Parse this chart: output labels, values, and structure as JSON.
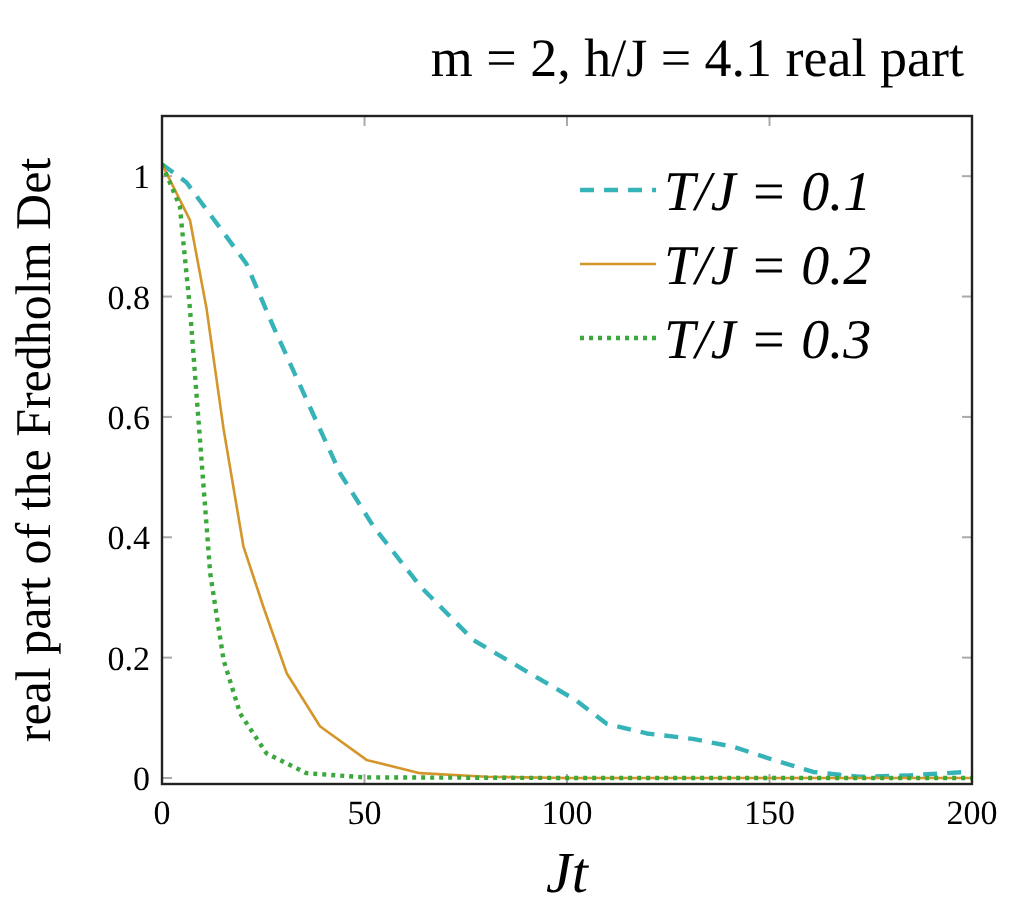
{
  "chart_data": {
    "type": "line",
    "title": "m = 2, h/J = 4.1 real part",
    "xlabel": "Jt",
    "ylabel": "real part of the Fredholm Det",
    "xlim": [
      0,
      200
    ],
    "ylim": [
      -0.01,
      1.1
    ],
    "xticks": [
      0,
      50,
      100,
      150,
      200
    ],
    "yticks": [
      0,
      0.2,
      0.4,
      0.6,
      0.8,
      1
    ],
    "grid": false,
    "legend": "top right",
    "marker": "none",
    "series": [
      {
        "name": "T/J = 0.1",
        "color": "#36b3b8",
        "line_style": "dashed",
        "x": [
          0,
          6,
          20.8,
          27.5,
          35.6,
          44,
          52.2,
          63.7,
          76.9,
          93.6,
          102,
          109.8,
          119.7,
          131,
          141,
          151,
          160.8,
          172,
          183.7,
          198.5,
          200
        ],
        "values": [
          1.02,
          0.99,
          0.855,
          0.75,
          0.63,
          0.506,
          0.418,
          0.319,
          0.229,
          0.163,
          0.13,
          0.09,
          0.074,
          0.065,
          0.052,
          0.03,
          0.01,
          0.002,
          0.004,
          0.01,
          0.01
        ]
      },
      {
        "name": "T/J = 0.2",
        "color": "#d4962a",
        "line_style": "solid",
        "x": [
          0,
          6.9,
          11,
          15.2,
          20.1,
          25,
          30.8,
          39,
          50.5,
          63.7,
          80,
          100,
          200
        ],
        "values": [
          1.02,
          0.927,
          0.78,
          0.58,
          0.385,
          0.285,
          0.174,
          0.086,
          0.03,
          0.008,
          0.002,
          0,
          0
        ]
      },
      {
        "name": "T/J = 0.3",
        "color": "#3aa83a",
        "line_style": "dotted",
        "x": [
          0,
          4.4,
          6.9,
          9.4,
          11.9,
          15.2,
          19.3,
          25.8,
          35.7,
          50,
          100,
          200
        ],
        "values": [
          1.02,
          0.95,
          0.78,
          0.56,
          0.34,
          0.196,
          0.107,
          0.041,
          0.008,
          0.001,
          0,
          0
        ]
      }
    ]
  }
}
